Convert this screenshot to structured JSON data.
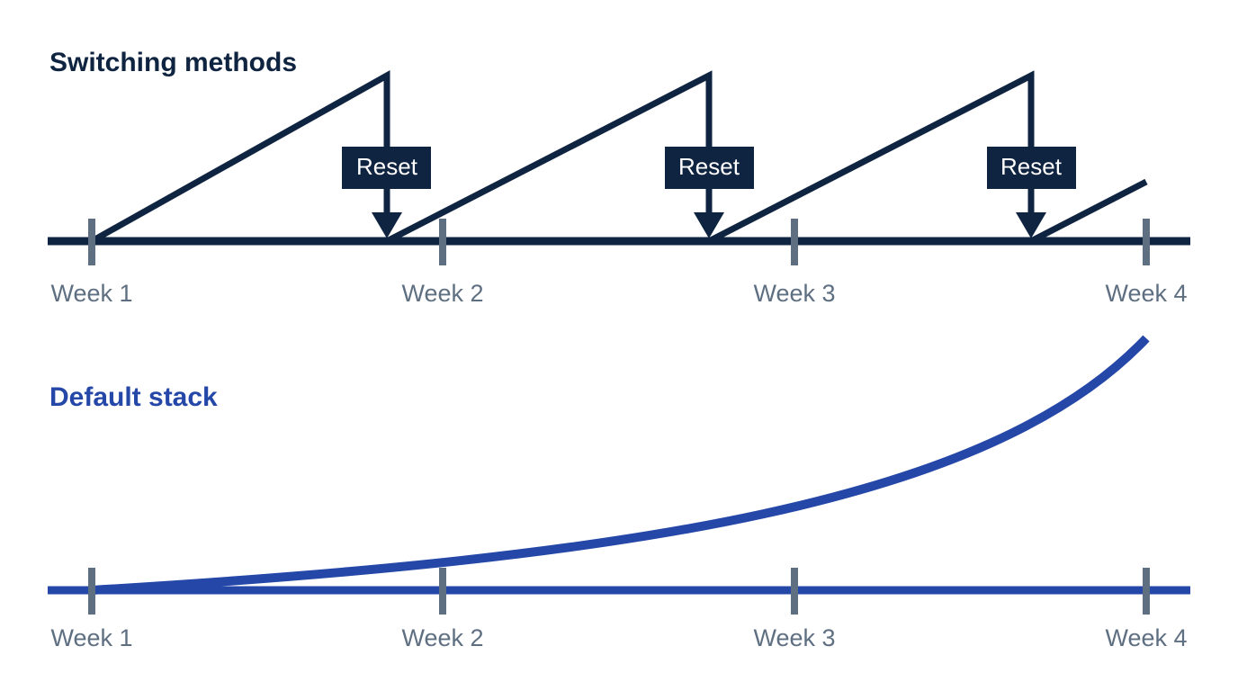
{
  "panels": [
    {
      "title": "Switching methods",
      "weeks": [
        "Week 1",
        "Week 2",
        "Week 3",
        "Week 4"
      ],
      "resets": [
        "Reset",
        "Reset",
        "Reset"
      ]
    },
    {
      "title": "Default stack",
      "weeks": [
        "Week 1",
        "Week 2",
        "Week 3",
        "Week 4"
      ]
    }
  ]
}
